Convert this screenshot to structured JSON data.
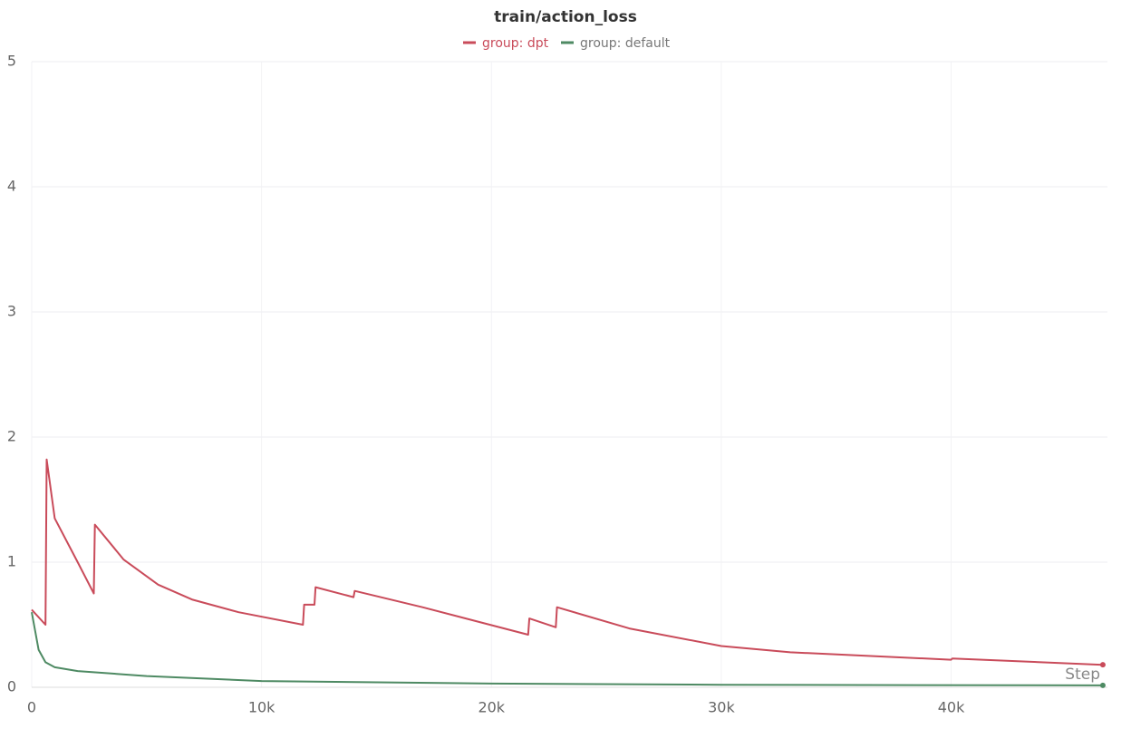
{
  "chart_data": {
    "type": "line",
    "title": "train/action_loss",
    "x_label": "Step",
    "series": [
      {
        "name": "group: dpt",
        "color": "#c94b5a",
        "x": [
          0,
          600,
          650,
          1000,
          2000,
          2700,
          2750,
          4000,
          5500,
          7000,
          9000,
          11800,
          11850,
          12300,
          12350,
          14000,
          14050,
          17000,
          21600,
          21650,
          22800,
          22850,
          26000,
          30000,
          33000,
          40000,
          40050,
          46600
        ],
        "values": [
          0.62,
          0.5,
          1.82,
          1.35,
          1.0,
          0.75,
          1.3,
          1.02,
          0.82,
          0.7,
          0.6,
          0.5,
          0.66,
          0.66,
          0.8,
          0.72,
          0.77,
          0.64,
          0.42,
          0.55,
          0.48,
          0.64,
          0.47,
          0.33,
          0.28,
          0.22,
          0.23,
          0.18
        ]
      },
      {
        "name": "group: default",
        "color": "#4e8a63",
        "x": [
          0,
          300,
          600,
          1000,
          2000,
          5000,
          10000,
          20000,
          30000,
          46600
        ],
        "values": [
          0.6,
          0.3,
          0.2,
          0.16,
          0.13,
          0.09,
          0.05,
          0.03,
          0.02,
          0.015
        ]
      }
    ],
    "xlim": [
      0,
      46800
    ],
    "ylim": [
      0,
      5
    ],
    "xticks": [
      0,
      {
        "value": 10000,
        "label": "10k"
      },
      {
        "value": 20000,
        "label": "20k"
      },
      {
        "value": 30000,
        "label": "30k"
      },
      {
        "value": 40000,
        "label": "40k"
      }
    ],
    "yticks": [
      0,
      1,
      2,
      3,
      4,
      5
    ],
    "grid": true
  }
}
